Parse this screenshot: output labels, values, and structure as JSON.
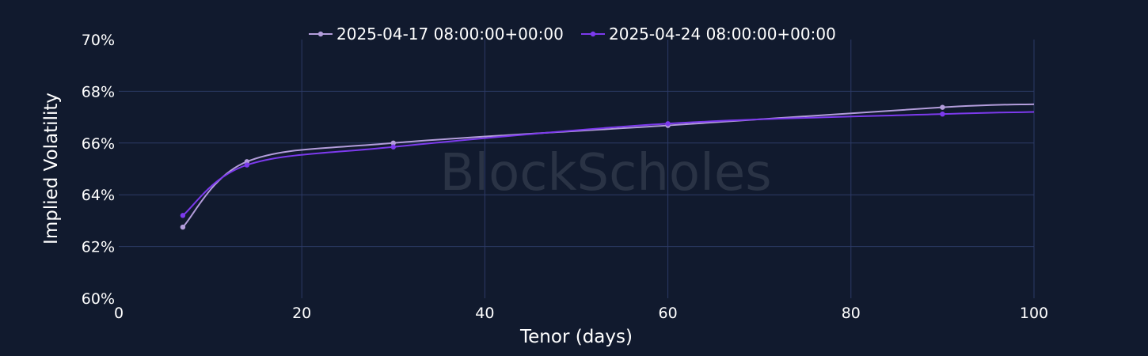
{
  "chart_data": {
    "type": "line",
    "xlabel": "Tenor (days)",
    "ylabel": "Implied Volatility",
    "xlim": [
      0,
      100
    ],
    "ylim": [
      60,
      70
    ],
    "x_ticks": [
      0,
      20,
      40,
      60,
      80,
      100
    ],
    "y_ticks": [
      60,
      62,
      64,
      66,
      68,
      70
    ],
    "y_tick_suffix": "%",
    "grid": true,
    "legend_position": "top-center",
    "watermark": "BlockScholes",
    "series": [
      {
        "name": "2025-04-17 08:00:00+00:00",
        "color": "#b39ddb",
        "x": [
          7,
          14,
          30,
          60,
          90
        ],
        "y": [
          62.75,
          65.28,
          66.0,
          66.68,
          67.38
        ],
        "curve_end": [
          100,
          67.5
        ]
      },
      {
        "name": "2025-04-24 08:00:00+00:00",
        "color": "#7c3aed",
        "x": [
          7,
          14,
          30,
          60,
          90
        ],
        "y": [
          63.2,
          65.15,
          65.85,
          66.75,
          67.12
        ],
        "curve_end": [
          100,
          67.2
        ]
      }
    ]
  }
}
